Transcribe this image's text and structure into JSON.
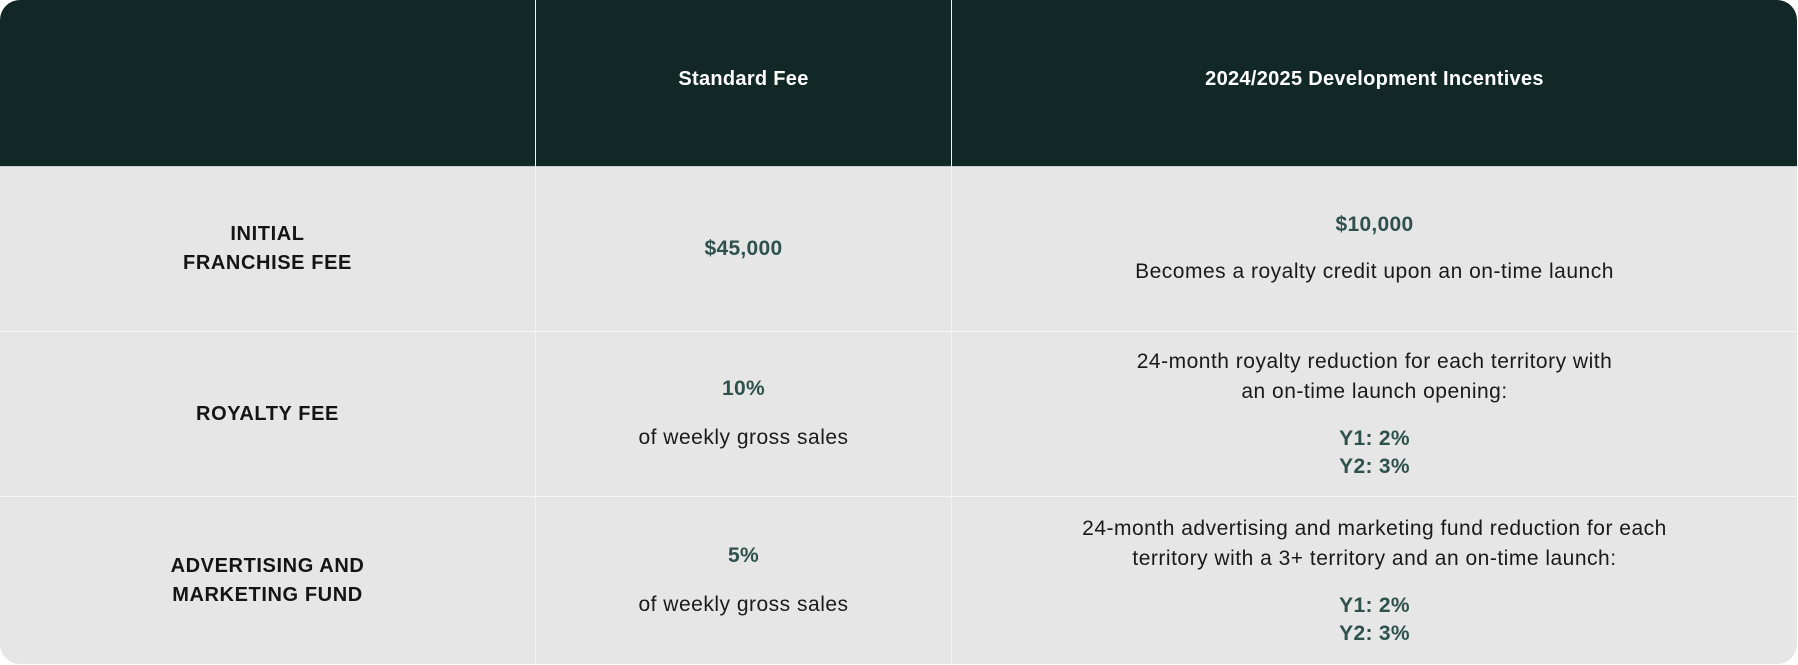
{
  "header": {
    "col1": "",
    "col2": "Standard Fee",
    "col3": "2024/2025 Development Incentives"
  },
  "rows": [
    {
      "label_lines": [
        "INITIAL",
        "FRANCHISE FEE"
      ],
      "standard_value": "$45,000",
      "standard_note": "",
      "incentive_lines": [],
      "incentive_value": "$10,000",
      "incentive_note": "Becomes a royalty credit upon an on-time launch"
    },
    {
      "label_lines": [
        "ROYALTY FEE"
      ],
      "standard_value": "10%",
      "standard_note": "of weekly gross sales",
      "incentive_lines": [
        "24-month royalty reduction for each territory with",
        "an on-time launch opening:"
      ],
      "incentive_y1": "Y1: 2%",
      "incentive_y2": "Y2: 3%"
    },
    {
      "label_lines": [
        "ADVERTISING AND",
        "MARKETING FUND"
      ],
      "standard_value": "5%",
      "standard_note": "of weekly gross sales",
      "incentive_lines": [
        "24-month advertising and marketing fund reduction for each",
        "territory with a 3+ territory and an on-time launch:"
      ],
      "incentive_y1": "Y1: 2%",
      "incentive_y2": "Y2: 3%"
    }
  ],
  "colors": {
    "header_bg": "#112826",
    "body_bg": "#e6e6e6",
    "accent_text": "#2e514d"
  }
}
